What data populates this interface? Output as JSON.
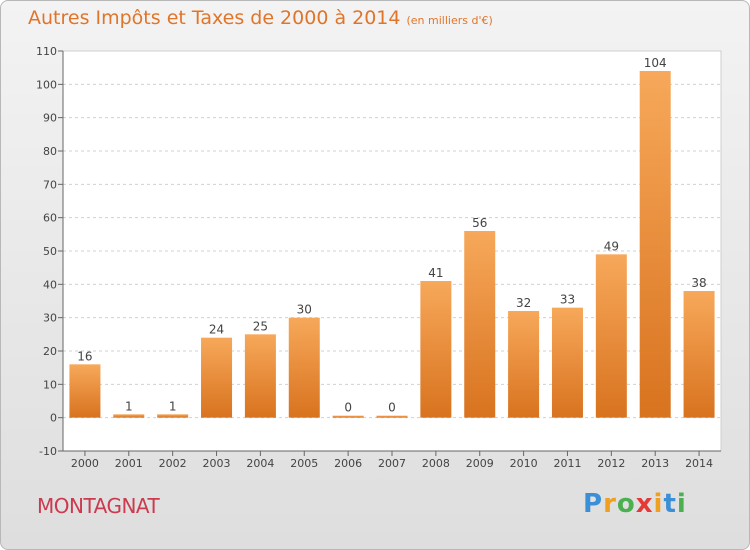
{
  "header": {
    "title": "Autres Impôts et Taxes de 2000 à 2014",
    "subtitle": "(en milliers d'€)"
  },
  "footer": {
    "commune": "MONTAGNAT",
    "logo_letters": [
      "P",
      "r",
      "o",
      "x",
      "i",
      "t",
      "i"
    ],
    "logo_colors": [
      "#3a8fd6",
      "#f0a020",
      "#4caf50",
      "#e53935",
      "#f0a020",
      "#3a8fd6",
      "#4caf50"
    ]
  },
  "chart_data": {
    "type": "bar",
    "title": "Autres Impôts et Taxes de 2000 à 2014",
    "subtitle": "(en milliers d'€)",
    "categories": [
      "2000",
      "2001",
      "2002",
      "2003",
      "2004",
      "2005",
      "2006",
      "2007",
      "2008",
      "2009",
      "2010",
      "2011",
      "2012",
      "2013",
      "2014"
    ],
    "values": [
      16,
      1,
      1,
      24,
      25,
      30,
      0,
      0,
      41,
      56,
      32,
      33,
      49,
      104,
      38
    ],
    "ylim": [
      -10,
      110
    ],
    "yticks": [
      -10,
      0,
      10,
      20,
      30,
      40,
      50,
      60,
      70,
      80,
      90,
      100,
      110
    ],
    "grid": true,
    "bar_color_light": "#f7a85a",
    "bar_color_dark": "#d8731f",
    "xlabel": "",
    "ylabel": ""
  }
}
